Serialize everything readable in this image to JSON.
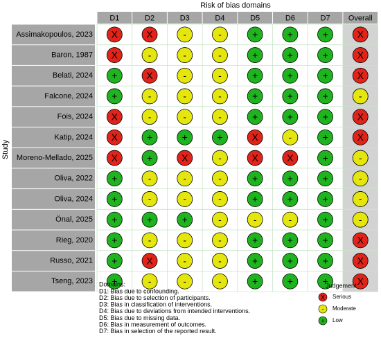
{
  "title": "Risk of bias domains",
  "y_label": "Study",
  "columns": [
    "D1",
    "D2",
    "D3",
    "D4",
    "D5",
    "D6",
    "D7",
    "Overall"
  ],
  "rows": [
    {
      "study": "Assimakopoulos, 2023",
      "judgements": [
        "X",
        "X",
        "-",
        "-",
        "+",
        "+",
        "+",
        "X"
      ]
    },
    {
      "study": "Baron, 1987",
      "judgements": [
        "X",
        "-",
        "-",
        "-",
        "+",
        "+",
        "+",
        "X"
      ]
    },
    {
      "study": "Belati, 2024",
      "judgements": [
        "+",
        "X",
        "-",
        "-",
        "+",
        "+",
        "+",
        "X"
      ]
    },
    {
      "study": "Falcone, 2024",
      "judgements": [
        "+",
        "-",
        "-",
        "-",
        "+",
        "+",
        "+",
        "-"
      ]
    },
    {
      "study": "Fois, 2024",
      "judgements": [
        "X",
        "-",
        "-",
        "-",
        "+",
        "+",
        "+",
        "X"
      ]
    },
    {
      "study": "Katip, 2024",
      "judgements": [
        "X",
        "+",
        "+",
        "+",
        "X",
        "-",
        "+",
        "X"
      ]
    },
    {
      "study": "Moreno-Mellado, 2025",
      "judgements": [
        "X",
        "+",
        "X",
        "-",
        "X",
        "X",
        "+",
        "-"
      ]
    },
    {
      "study": "Oliva, 2022",
      "judgements": [
        "+",
        "-",
        "-",
        "-",
        "+",
        "+",
        "+",
        "-"
      ]
    },
    {
      "study": "Oliva, 2024",
      "judgements": [
        "+",
        "-",
        "-",
        "-",
        "+",
        "+",
        "+",
        "-"
      ]
    },
    {
      "study": "Önal, 2025",
      "judgements": [
        "+",
        "+",
        "+",
        "-",
        "-",
        "-",
        "+",
        "-"
      ]
    },
    {
      "study": "Rieg, 2020",
      "judgements": [
        "+",
        "-",
        "-",
        "-",
        "+",
        "+",
        "+",
        "X"
      ]
    },
    {
      "study": "Russo, 2021",
      "judgements": [
        "+",
        "X",
        "-",
        "-",
        "+",
        "+",
        "+",
        "X"
      ]
    },
    {
      "study": "Tseng, 2023",
      "judgements": [
        "+",
        "-",
        "-",
        "-",
        "+",
        "+",
        "+",
        "X"
      ]
    }
  ],
  "domains": {
    "heading": "Domains:",
    "items": [
      "D1: Bias due to confounding.",
      "D2: Bias due to selection of participants.",
      "D3: Bias in classification of interventions.",
      "D4: Bias due to deviations from intended interventions.",
      "D5: Bias due to missing data.",
      "D6: Bias in measurement of outcomes.",
      "D7: Bias in selection of the reported result."
    ]
  },
  "legend": {
    "title": "Judgement",
    "items": [
      {
        "symbol": "X",
        "label": "Serious",
        "color": "#e2231a"
      },
      {
        "symbol": "-",
        "label": "Moderate",
        "color": "#e6e60f"
      },
      {
        "symbol": "+",
        "label": "Low",
        "color": "#1fb31f"
      }
    ]
  }
}
